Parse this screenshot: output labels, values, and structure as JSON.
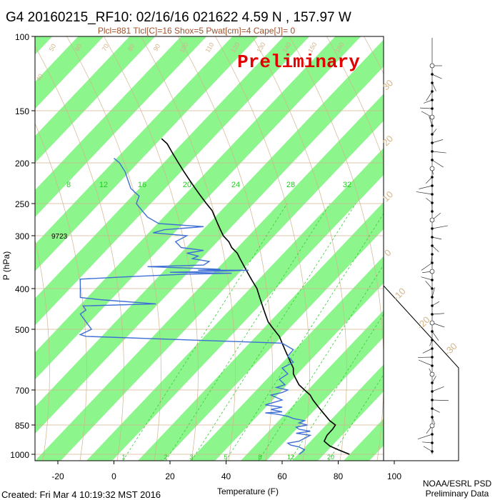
{
  "chart_data": {
    "type": "skew-t",
    "title": "G4 20160215_RF10: 02/16/16 021622   4.59 N , 157.97 W",
    "subtitle": "Plcl=881 Tlcl[C]=16 Shox=5 Pwat[cm]=4 Cape[J]= 0",
    "watermark": "Preliminary",
    "xlabel": "Temperature (F)",
    "ylabel": "P (hPa)",
    "x_ticks": [
      -20,
      0,
      20,
      40,
      60,
      80,
      100
    ],
    "y_ticks": [
      100,
      150,
      200,
      250,
      300,
      400,
      500,
      700,
      850,
      1000
    ],
    "xlim": [
      -28,
      100
    ],
    "ylim": [
      1000,
      100
    ],
    "height_label": "9723",
    "mixing_ratio_labels": [
      "8",
      "12",
      "16",
      "20",
      "24",
      "28",
      "32"
    ],
    "mixing_ratio_bottom_labels": [
      "1",
      "2",
      "3",
      "5",
      "8",
      "12",
      "20"
    ],
    "temp_c_labels": [
      "-30",
      "-20",
      "-10",
      "0",
      "10",
      "20",
      "30"
    ],
    "theta_labels": [
      "40",
      "50",
      "60",
      "70",
      "80",
      "90",
      "100",
      "110",
      "120",
      "130",
      "140",
      "150",
      "160"
    ],
    "credit": [
      "NOAA/ESRL PSD",
      "Preliminary Data"
    ],
    "created": "Created: Fri Mar  4 10:19:32 MST 2016",
    "colors": {
      "temperature": "#000000",
      "dewpoint": "#3f6fd6",
      "bands": "#8cf58c",
      "dry_adiabat": "#d2b48c",
      "mixing_ratio": "#33cc33",
      "isobar": "#d2b48c"
    },
    "series": [
      {
        "name": "temperature",
        "points": [
          [
            84,
            1000
          ],
          [
            80,
            975
          ],
          [
            77,
            955
          ],
          [
            75,
            930
          ],
          [
            76,
            900
          ],
          [
            78,
            870
          ],
          [
            79,
            850
          ],
          [
            77,
            830
          ],
          [
            75,
            800
          ],
          [
            73,
            770
          ],
          [
            71,
            740
          ],
          [
            70,
            720
          ],
          [
            68,
            700
          ],
          [
            66,
            680
          ],
          [
            65,
            660
          ],
          [
            64,
            640
          ],
          [
            64,
            620
          ],
          [
            63,
            600
          ],
          [
            62,
            580
          ],
          [
            61,
            560
          ],
          [
            60,
            540
          ],
          [
            59,
            520
          ],
          [
            57,
            500
          ],
          [
            55,
            480
          ],
          [
            54,
            460
          ],
          [
            53,
            440
          ],
          [
            52,
            420
          ],
          [
            51,
            400
          ],
          [
            50,
            390
          ],
          [
            49,
            380
          ],
          [
            48,
            370
          ],
          [
            47,
            360
          ],
          [
            46,
            350
          ],
          [
            45,
            340
          ],
          [
            44,
            330
          ],
          [
            42,
            320
          ],
          [
            41,
            310
          ],
          [
            39,
            300
          ],
          [
            38,
            290
          ],
          [
            37,
            280
          ],
          [
            36,
            270
          ],
          [
            35,
            260
          ],
          [
            33,
            250
          ],
          [
            31,
            240
          ],
          [
            29,
            230
          ],
          [
            27,
            220
          ],
          [
            25,
            210
          ],
          [
            23,
            200
          ],
          [
            21,
            190
          ],
          [
            19,
            180
          ],
          [
            17,
            175
          ]
        ]
      },
      {
        "name": "dewpoint",
        "points": [
          [
            66,
            1000
          ],
          [
            67,
            990
          ],
          [
            68,
            975
          ],
          [
            66,
            960
          ],
          [
            63,
            950
          ],
          [
            62,
            940
          ],
          [
            66,
            930
          ],
          [
            68,
            915
          ],
          [
            70,
            900
          ],
          [
            65,
            890
          ],
          [
            70,
            880
          ],
          [
            66,
            870
          ],
          [
            65,
            860
          ],
          [
            69,
            850
          ],
          [
            66,
            840
          ],
          [
            68,
            830
          ],
          [
            64,
            820
          ],
          [
            62,
            810
          ],
          [
            58,
            800
          ],
          [
            54,
            795
          ],
          [
            60,
            790
          ],
          [
            56,
            780
          ],
          [
            60,
            770
          ],
          [
            54,
            760
          ],
          [
            60,
            740
          ],
          [
            56,
            720
          ],
          [
            60,
            710
          ],
          [
            62,
            700
          ],
          [
            58,
            690
          ],
          [
            61,
            680
          ],
          [
            59,
            660
          ],
          [
            62,
            640
          ],
          [
            60,
            620
          ],
          [
            64,
            600
          ],
          [
            62,
            580
          ],
          [
            64,
            560
          ],
          [
            60,
            540
          ],
          [
            -10,
            520
          ],
          [
            -12,
            515
          ],
          [
            -8,
            500
          ],
          [
            -12,
            460
          ],
          [
            -10,
            450
          ],
          [
            -11,
            440
          ],
          [
            15,
            435
          ],
          [
            -5,
            425
          ],
          [
            -12,
            420
          ],
          [
            -12,
            400
          ],
          [
            -12,
            380
          ],
          [
            5,
            375
          ],
          [
            25,
            370
          ],
          [
            42,
            368
          ],
          [
            20,
            366
          ],
          [
            30,
            365
          ],
          [
            48,
            362
          ],
          [
            30,
            362
          ],
          [
            38,
            360
          ],
          [
            12,
            355
          ],
          [
            32,
            352
          ],
          [
            34,
            345
          ],
          [
            28,
            340
          ],
          [
            30,
            335
          ],
          [
            26,
            330
          ],
          [
            32,
            325
          ],
          [
            24,
            320
          ],
          [
            22,
            310
          ],
          [
            26,
            300
          ],
          [
            14,
            295
          ],
          [
            18,
            290
          ],
          [
            32,
            285
          ],
          [
            16,
            280
          ],
          [
            12,
            270
          ],
          [
            10,
            260
          ],
          [
            8,
            250
          ],
          [
            9,
            240
          ],
          [
            6,
            230
          ],
          [
            5,
            220
          ],
          [
            4,
            210
          ],
          [
            2,
            200
          ],
          [
            0,
            195
          ]
        ]
      }
    ]
  }
}
